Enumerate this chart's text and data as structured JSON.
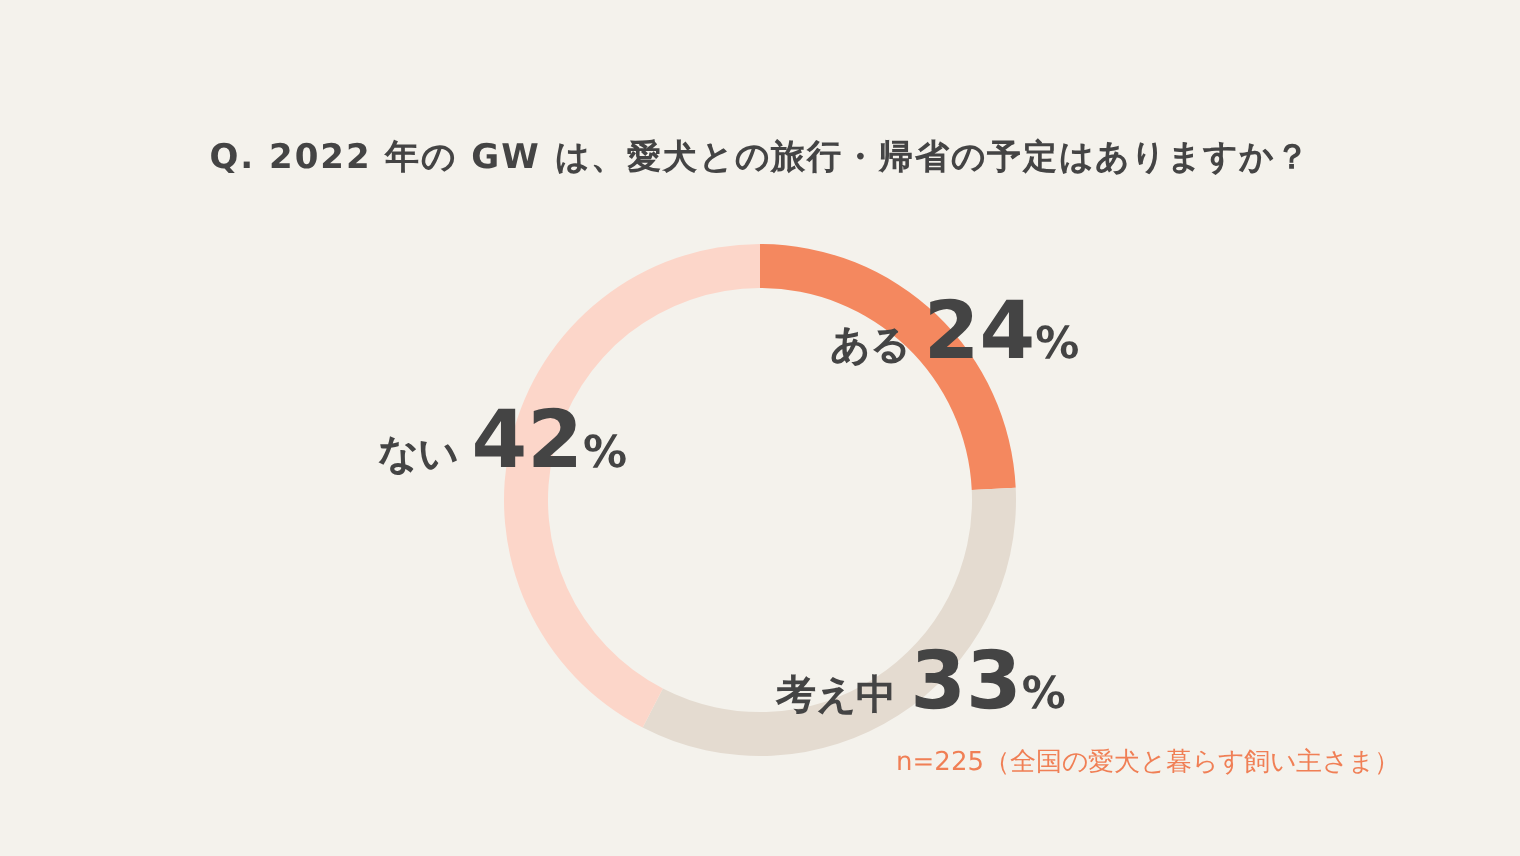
{
  "chart_data": {
    "type": "donut",
    "title": "Q. 2022 年の GW は、愛犬との旅行・帰省の予定はありますか？",
    "categories": [
      "ある",
      "考え中",
      "ない"
    ],
    "values": [
      24,
      33,
      42
    ],
    "colors": [
      "#f4885f",
      "#e4dbd0",
      "#fcd6c9"
    ],
    "value_labels": [
      "24%",
      "33%",
      "42%"
    ],
    "annotations": [
      "n=225（全国の愛犬と暮らす飼い主さま）"
    ]
  }
}
